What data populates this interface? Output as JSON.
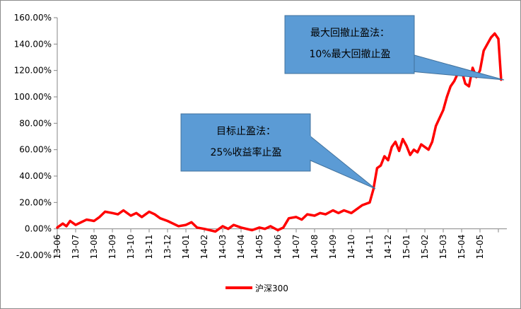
{
  "chart_data": {
    "type": "line",
    "ylim": [
      -20,
      160
    ],
    "yticks": [
      -20,
      0,
      20,
      40,
      60,
      80,
      100,
      120,
      140,
      160
    ],
    "ytick_labels": [
      "-20.00%",
      "0.00%",
      "20.00%",
      "40.00%",
      "60.00%",
      "80.00%",
      "100.00%",
      "120.00%",
      "140.00%",
      "160.00%"
    ],
    "xtick_labels": [
      "13-06",
      "13-07",
      "13-08",
      "13-09",
      "13-10",
      "13-11",
      "13-12",
      "14-01",
      "14-02",
      "14-03",
      "14-04",
      "14-05",
      "14-06",
      "14-07",
      "14-08",
      "14-09",
      "14-10",
      "14-11",
      "14-12",
      "15-01",
      "15-02",
      "15-03",
      "15-04",
      "15-05"
    ],
    "series": [
      {
        "name": "沪深300",
        "color": "#ff0000",
        "x": [
          0,
          0.3,
          0.5,
          0.7,
          1.0,
          1.3,
          1.6,
          2.0,
          2.3,
          2.6,
          3.0,
          3.3,
          3.6,
          4.0,
          4.3,
          4.6,
          5.0,
          5.3,
          5.6,
          6.0,
          6.3,
          6.6,
          7.0,
          7.3,
          7.6,
          8.0,
          8.3,
          8.6,
          9.0,
          9.3,
          9.6,
          10.0,
          10.3,
          10.6,
          11.0,
          11.3,
          11.6,
          12.0,
          12.3,
          12.6,
          13.0,
          13.3,
          13.6,
          14.0,
          14.3,
          14.6,
          15.0,
          15.3,
          15.6,
          16.0,
          16.3,
          16.6,
          17.0,
          17.2,
          17.4,
          17.6,
          17.8,
          18.0,
          18.2,
          18.4,
          18.6,
          18.8,
          19.0,
          19.2,
          19.4,
          19.6,
          19.8,
          20.0,
          20.2,
          20.4,
          20.6,
          20.8,
          21.0,
          21.2,
          21.4,
          21.6,
          21.8,
          22.0,
          22.2,
          22.4,
          22.6,
          22.8,
          23.0,
          23.2,
          23.4,
          23.6,
          23.8,
          24.0,
          24.15
        ],
        "values": [
          1,
          4,
          2,
          6,
          3,
          5,
          7,
          6,
          9,
          13,
          12,
          11,
          14,
          10,
          12,
          9,
          13,
          11,
          8,
          6,
          4,
          2,
          3,
          5,
          1,
          0,
          -1,
          -2,
          2,
          0,
          3,
          1,
          0,
          -1,
          1,
          0,
          2,
          -1,
          1,
          8,
          9,
          7,
          11,
          10,
          12,
          11,
          14,
          12,
          14,
          12,
          15,
          18,
          20,
          30,
          46,
          48,
          55,
          52,
          62,
          66,
          59,
          68,
          63,
          56,
          60,
          58,
          64,
          62,
          60,
          66,
          78,
          84,
          90,
          100,
          108,
          112,
          118,
          120,
          110,
          108,
          122,
          115,
          120,
          135,
          140,
          145,
          148,
          144,
          113
        ]
      }
    ],
    "annotations": [
      {
        "lines": [
          "最大回撤止盈法：",
          "10%最大回撤止盈"
        ]
      },
      {
        "lines": [
          "目标止盈法：",
          "25%收益率止盈"
        ]
      }
    ],
    "legend": {
      "position": "bottom-center"
    },
    "grid": false
  }
}
